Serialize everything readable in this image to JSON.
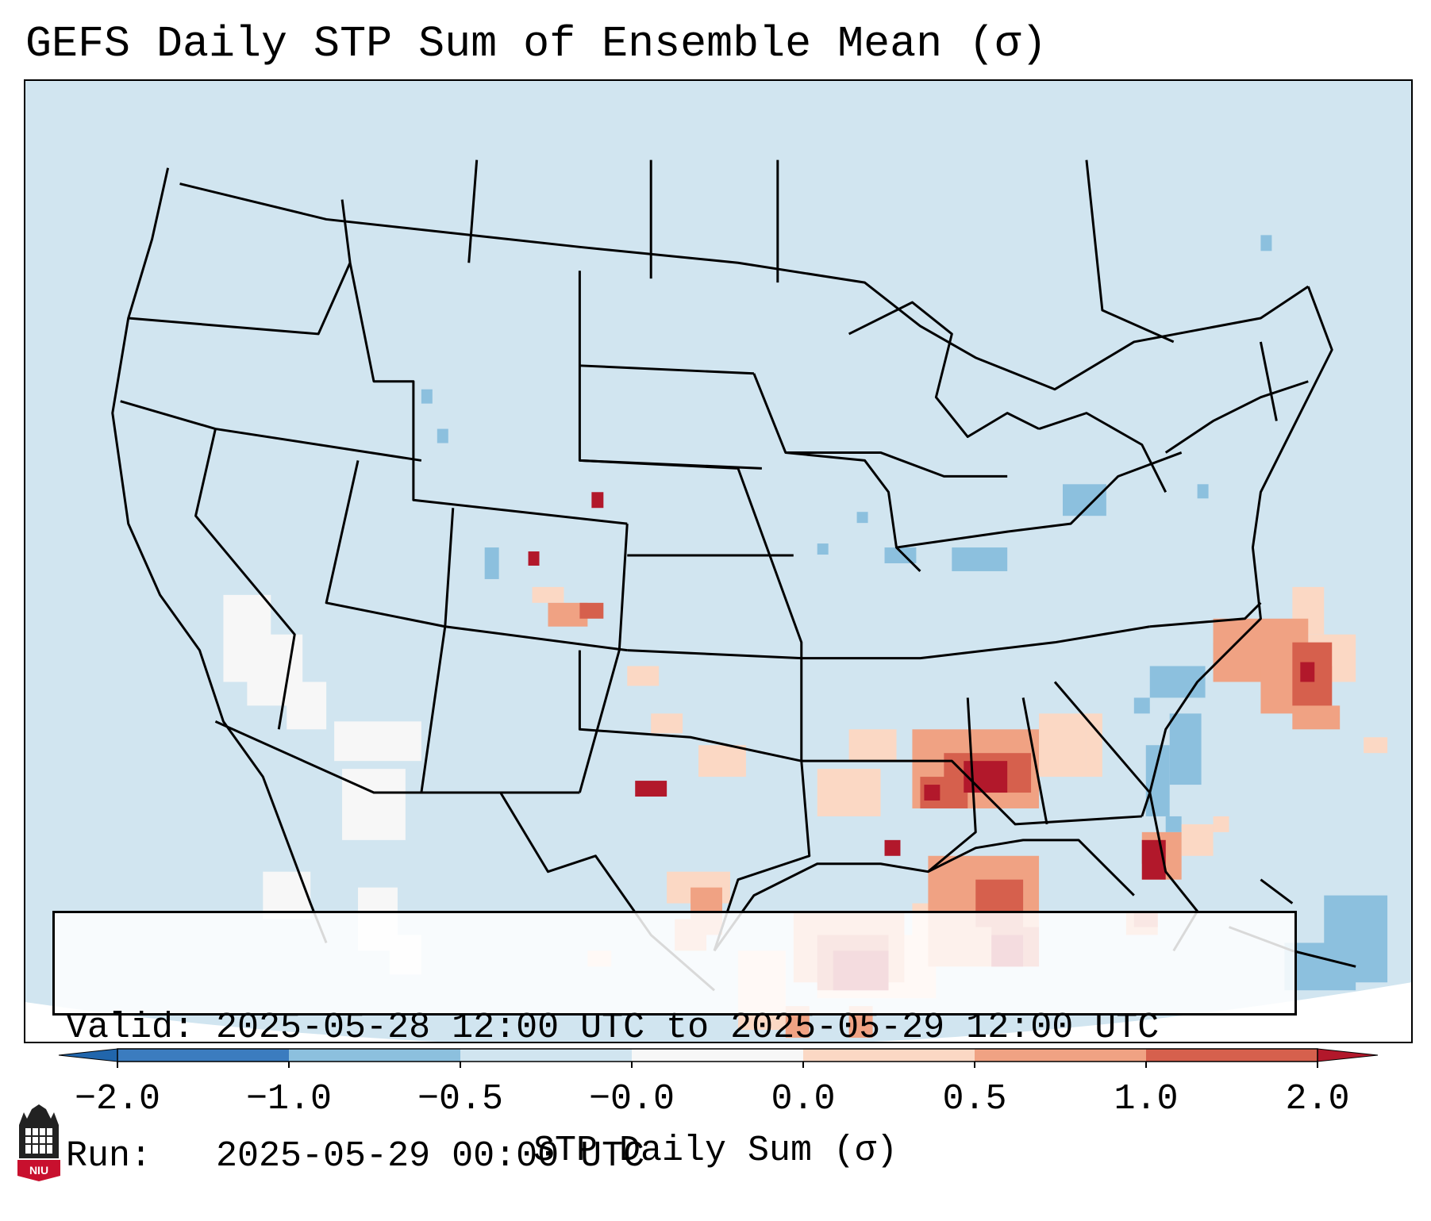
{
  "title": "GEFS Daily STP Sum of Ensemble Mean (σ)",
  "info": {
    "valid_line": "Valid: 2025-05-28 12:00 UTC to 2025-05-29 12:00 UTC",
    "run_line": "Run:   2025-05-29 00:00 UTC"
  },
  "colorbar": {
    "label": "STP Daily Sum (σ)",
    "ticks": [
      "−2.0",
      "−1.0",
      "−0.5",
      "−0.0",
      "0.0",
      "0.5",
      "1.0",
      "2.0"
    ],
    "colors": [
      "#3b7cbf",
      "#8cc0de",
      "#d1e5f0",
      "#f7f7f7",
      "#fbd8c4",
      "#f0a283",
      "#d6604d",
      "#b2182b"
    ],
    "extend_min_color": "#2166ac",
    "extend_max_color": "#b2182b"
  },
  "map": {
    "background": "#d1e5f0",
    "outside_domain": "#ffffff",
    "line_color": "#000000"
  },
  "logo": {
    "text": "NIU",
    "color": "#c8102e"
  }
}
